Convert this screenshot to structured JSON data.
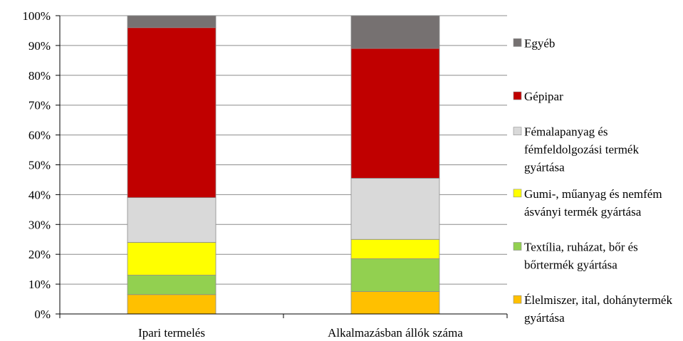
{
  "chart_data": {
    "type": "bar",
    "stacked": true,
    "percent": true,
    "categories": [
      "Ipari termelés",
      "Alkalmazásban állók száma"
    ],
    "series": [
      {
        "name": "Élelmiszer, ital, dohánytermék gyártása",
        "color": "#FFC000",
        "values": [
          6.5,
          7.5
        ]
      },
      {
        "name": "Textília, ruházat, bőr és bőrtermék gyártása",
        "color": "#92D050",
        "values": [
          6.5,
          11
        ]
      },
      {
        "name": "Gumi-, műanyag és nemfém ásványi termék gyártása",
        "color": "#FFFF00",
        "values": [
          11,
          6.5
        ]
      },
      {
        "name": "Fémalapanyag és fémfeldolgozási termék gyártása",
        "color": "#D9D9D9",
        "values": [
          15,
          20.5
        ]
      },
      {
        "name": "Gépipar",
        "color": "#C00000",
        "values": [
          57,
          43.5
        ]
      },
      {
        "name": "Egyéb",
        "color": "#767171",
        "values": [
          4,
          11
        ]
      }
    ],
    "y_ticks": [
      "0%",
      "10%",
      "20%",
      "30%",
      "40%",
      "50%",
      "60%",
      "70%",
      "80%",
      "90%",
      "100%"
    ],
    "ylim": [
      0,
      100
    ],
    "grid": true,
    "legend_position": "right"
  }
}
